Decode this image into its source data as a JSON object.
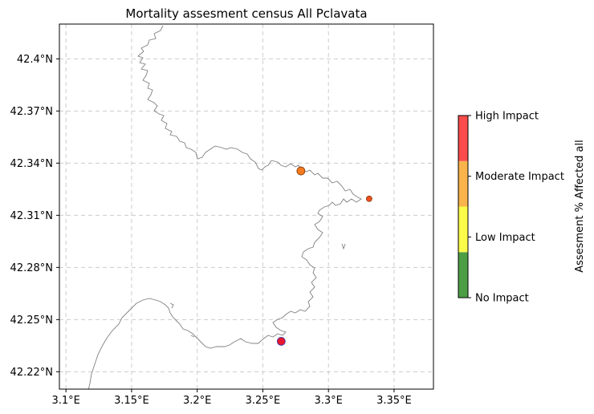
{
  "title": "Mortality assesment census All Pclavata",
  "map": {
    "x_ticks": [
      {
        "value": 3.1,
        "label": "3.1°E"
      },
      {
        "value": 3.15,
        "label": "3.15°E"
      },
      {
        "value": 3.2,
        "label": "3.2°E"
      },
      {
        "value": 3.25,
        "label": "3.25°E"
      },
      {
        "value": 3.3,
        "label": "3.3°E"
      },
      {
        "value": 3.35,
        "label": "3.35°E"
      }
    ],
    "y_ticks": [
      {
        "value": 42.22,
        "label": "42.22°N"
      },
      {
        "value": 42.25,
        "label": "42.25°N"
      },
      {
        "value": 42.28,
        "label": "42.28°N"
      },
      {
        "value": 42.31,
        "label": "42.31°N"
      },
      {
        "value": 42.34,
        "label": "42.34°N"
      },
      {
        "value": 42.37,
        "label": "42.37°N"
      },
      {
        "value": 42.4,
        "label": "42.4°N"
      }
    ],
    "lon_range": [
      3.095,
      3.38
    ],
    "lat_range": [
      42.21,
      42.42
    ],
    "grid": true,
    "coastline_color": "#808080",
    "points": [
      {
        "lon": 3.279,
        "lat": 42.3355,
        "color": "#f47a1f",
        "level": "moderate-high"
      },
      {
        "lon": 3.331,
        "lat": 42.3195,
        "color": "#f04e1e",
        "level": "high"
      },
      {
        "lon": 3.264,
        "lat": 42.2375,
        "color": "#e8172e",
        "level": "high"
      }
    ]
  },
  "colorbar": {
    "label": "Assesment % Affected all",
    "levels": [
      {
        "label": "No Impact",
        "color": "#4c9e44"
      },
      {
        "label": "Low Impact",
        "color": "#fbfb4a"
      },
      {
        "label": "Moderate Impact",
        "color": "#fbb34c"
      },
      {
        "label": "High Impact",
        "color": "#fb4b4b"
      }
    ]
  }
}
